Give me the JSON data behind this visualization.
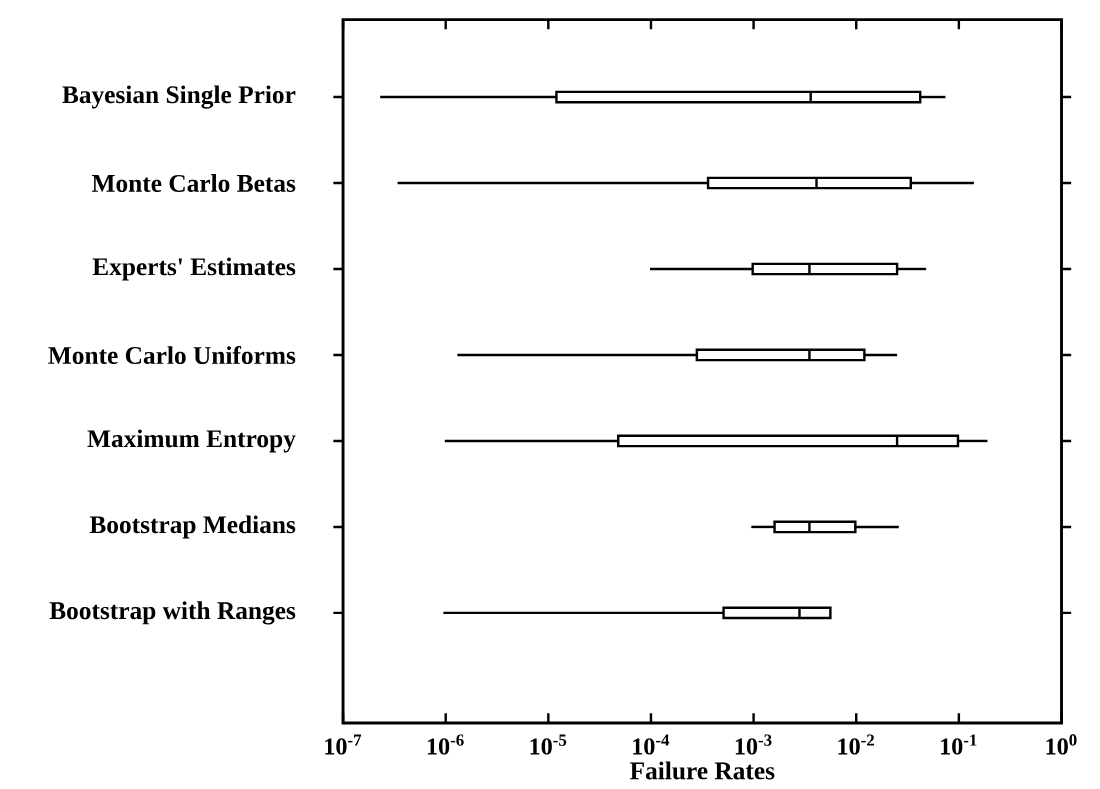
{
  "chart_data": {
    "type": "box",
    "orientation": "horizontal",
    "log": "x",
    "xlabel": "Failure Rates",
    "color": "#000000",
    "categories": [
      "Bayesian Single Prior",
      "Monte Carlo Betas",
      "Experts' Estimates",
      "Monte Carlo Uniforms",
      "Maximum Entropy",
      "Bootstrap Medians",
      "Bootstrap with Ranges"
    ],
    "boxes": [
      {
        "low": 2.3e-07,
        "q1": 1.2e-05,
        "median": 0.0036,
        "q3": 0.042,
        "high": 0.074
      },
      {
        "low": 3.4e-07,
        "q1": 0.00036,
        "median": 0.0041,
        "q3": 0.034,
        "high": 0.14
      },
      {
        "low": 9.8e-05,
        "q1": 0.00098,
        "median": 0.0035,
        "q3": 0.025,
        "high": 0.048
      },
      {
        "low": 1.3e-06,
        "q1": 0.00028,
        "median": 0.0035,
        "q3": 0.012,
        "high": 0.025
      },
      {
        "low": 9.8e-07,
        "q1": 4.8e-05,
        "median": 0.025,
        "q3": 0.098,
        "high": 0.19
      },
      {
        "low": 0.00095,
        "q1": 0.0016,
        "median": 0.0035,
        "q3": 0.0098,
        "high": 0.026
      },
      {
        "low": 9.5e-07,
        "q1": 0.00051,
        "median": 0.0028,
        "q3": 0.0056,
        "high": 0.0056
      }
    ],
    "xlim": [
      1e-07,
      1
    ],
    "xticks": [
      {
        "value": 1e-07,
        "label": "10$^{-7}$"
      },
      {
        "value": 1e-06,
        "label": "10$^{-6}$"
      },
      {
        "value": 1e-05,
        "label": "10$^{-5}$"
      },
      {
        "value": 0.0001,
        "label": "10$^{-4}$"
      },
      {
        "value": 0.001,
        "label": "10$^{-3}$"
      },
      {
        "value": 0.01,
        "label": "10$^{-2}$"
      },
      {
        "value": 0.1,
        "label": "10$^{-1}$"
      },
      {
        "value": 1,
        "label": "10$^{0}$"
      }
    ],
    "grid": false
  }
}
